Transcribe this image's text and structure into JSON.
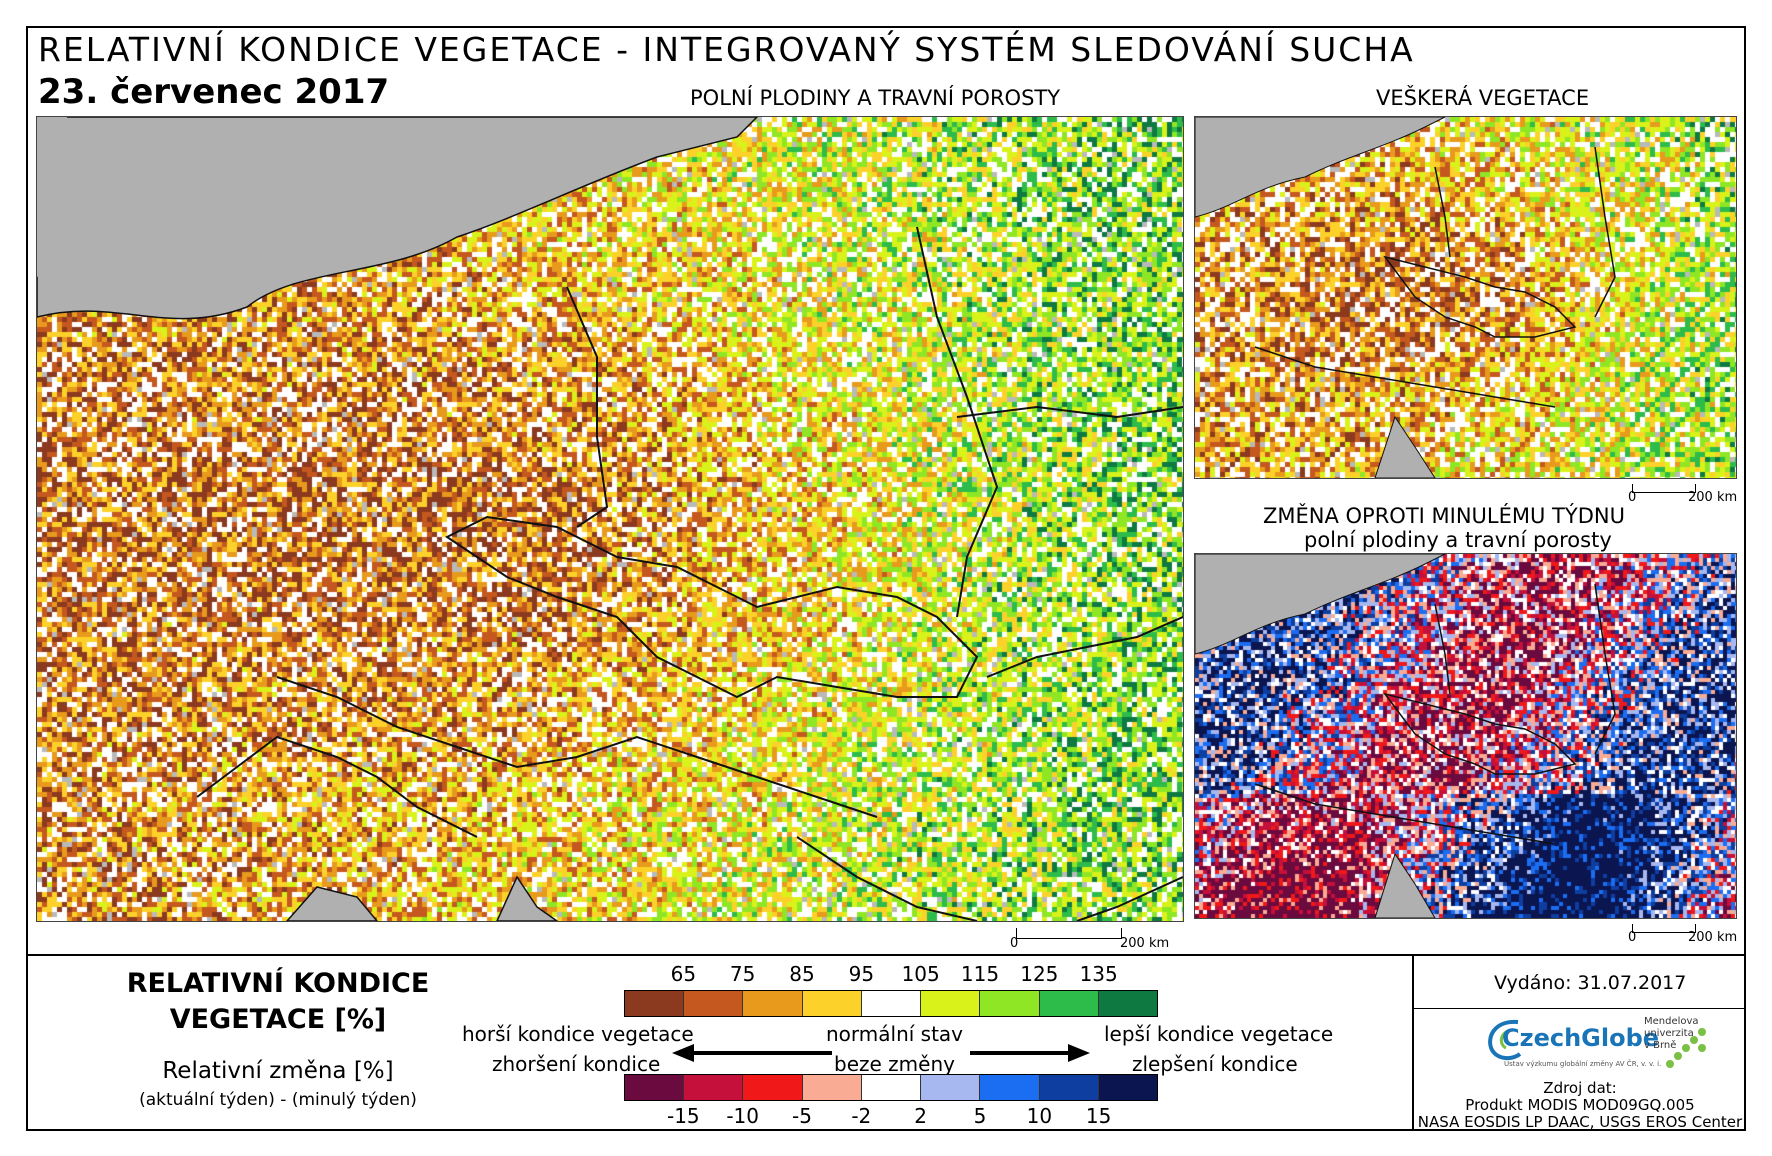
{
  "header": {
    "title": "RELATIVNÍ KONDICE VEGETACE - INTEGROVANÝ SYSTÉM SLEDOVÁNÍ SUCHA",
    "date": "23. červenec 2017"
  },
  "maps": {
    "main_title": "POLNÍ PLODINY A TRAVNÍ POROSTY",
    "all_title": "VEŠKERÁ VEGETACE",
    "change_title_line1": "ZMĚNA OPROTI MINULÉMU TÝDNU",
    "change_title_line2": "polní plodiny a travní porosty",
    "scale_zero": "0",
    "scale_label": "200 km"
  },
  "legend": {
    "title_line1": "RELATIVNÍ KONDICE",
    "title_line2": "VEGETACE [%]",
    "change_title": "Relativní změna [%]",
    "change_formula": "(aktuální týden) - (minulý týden)",
    "condition_ticks": [
      "65",
      "75",
      "85",
      "95",
      "105",
      "115",
      "125",
      "135"
    ],
    "condition_colors": [
      "#8b3a1f",
      "#c4581e",
      "#e89a1c",
      "#fcd22a",
      "#ffffff",
      "#d9f21a",
      "#8fe624",
      "#2dbb4a",
      "#0e7a42"
    ],
    "change_ticks": [
      "-15",
      "-10",
      "-5",
      "-2",
      "2",
      "5",
      "10",
      "15"
    ],
    "change_colors": [
      "#6b0a3f",
      "#c4103a",
      "#f01818",
      "#f9ab93",
      "#ffffff",
      "#a6b8ef",
      "#1b6df2",
      "#0d3ea0",
      "#0b1550"
    ],
    "worse_condition": "horší kondice vegetace",
    "worse_change": "zhoršení kondice",
    "normal_state": "normální stav",
    "no_change": "beze změny",
    "better_condition": "lepší kondice vegetace",
    "better_change": "zlepšení kondice"
  },
  "footer": {
    "issued": "Vydáno: 31.07.2017",
    "logo_czechglobe": "CzechGlobe",
    "logo_czechglobe_sub": "Ústav výzkumu globální změny AV ČR, v. v. i.",
    "logo_mendel_line1": "Mendelova",
    "logo_mendel_line2": "univerzita",
    "logo_mendel_line3": "v Brně",
    "source_line1": "Zdroj dat:",
    "source_line2": "Produkt MODIS MOD09GQ.005",
    "source_line3": "NASA EOSDIS LP DAAC, USGS EROS Center"
  }
}
